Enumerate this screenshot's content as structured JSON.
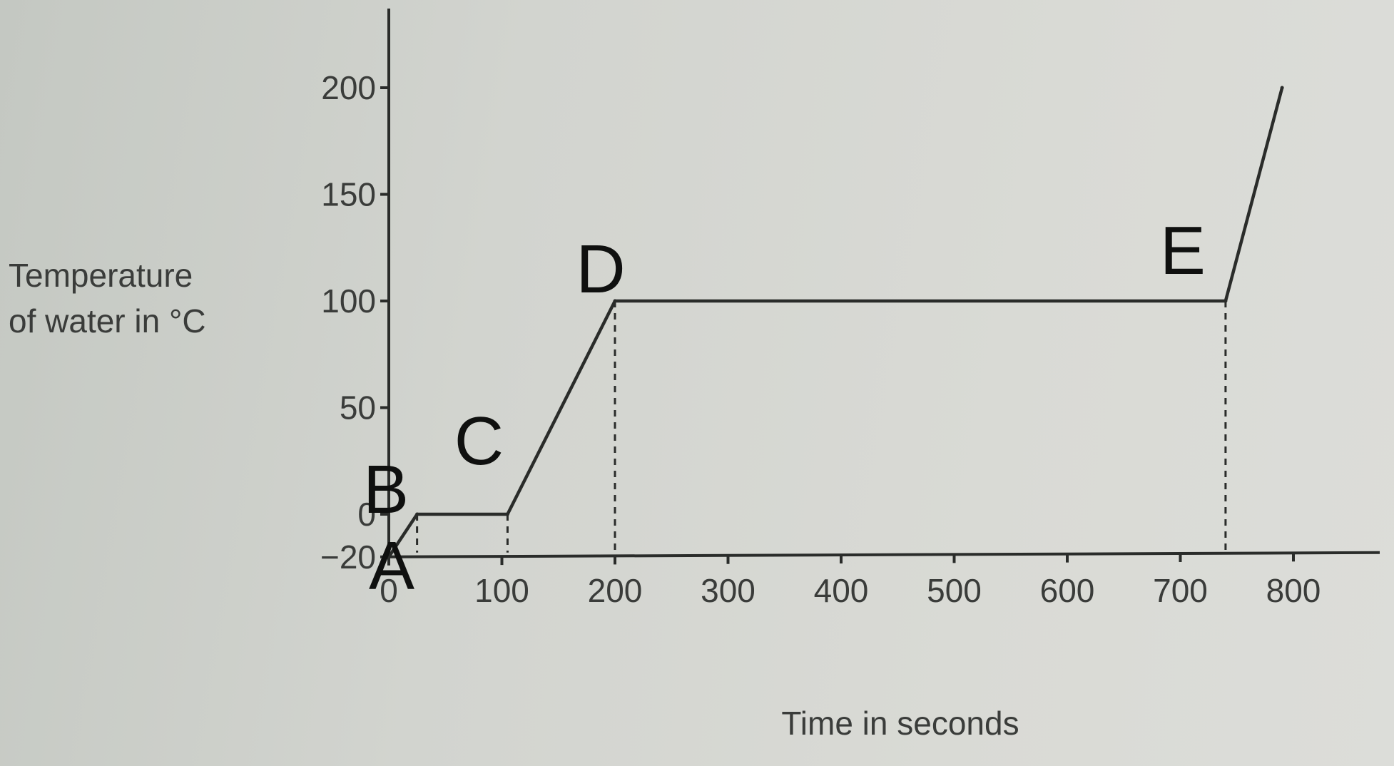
{
  "chart_data": {
    "type": "line",
    "title": "",
    "xlabel": "Time in seconds",
    "ylabel_lines": [
      "Temperature",
      "of water in °C"
    ],
    "x_ticks": [
      0,
      100,
      200,
      300,
      400,
      500,
      600,
      700,
      800
    ],
    "y_ticks": [
      -20,
      0,
      50,
      100,
      150,
      200
    ],
    "y_tick_labels": [
      "−20",
      "0",
      "50",
      "100",
      "150",
      "200"
    ],
    "xlim": [
      0,
      870
    ],
    "ylim": [
      -20,
      230
    ],
    "series": [
      {
        "x": [
          0,
          25,
          105,
          200,
          740,
          790
        ],
        "y": [
          -20,
          0,
          0,
          100,
          100,
          200
        ]
      }
    ],
    "dashed_drops_x": [
      25,
      105,
      200,
      740
    ],
    "point_labels": [
      {
        "text": "A",
        "x": 0,
        "y": -20
      },
      {
        "text": "B",
        "x": 0,
        "y": 0
      },
      {
        "text": "C",
        "x": 105,
        "y": 0
      },
      {
        "text": "D",
        "x": 200,
        "y": 100
      },
      {
        "text": "E",
        "x": 740,
        "y": 100
      }
    ],
    "colors": {
      "line": "#2a2c2a",
      "label": "#0f100f",
      "text": "#3a3c3a"
    }
  }
}
